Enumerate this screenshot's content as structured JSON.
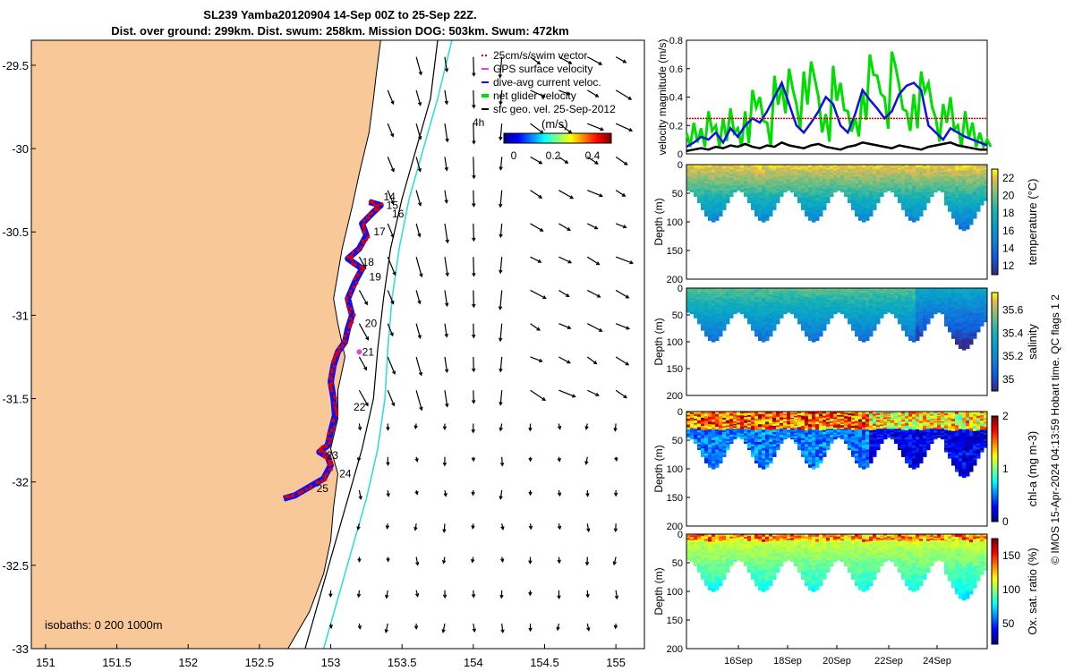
{
  "title_line1": "SL239 Yamba20120904 14-Sep 00Z to 25-Sep 22Z.",
  "title_line2": "Dist. over ground: 299km. Dist. swum: 258km. Mission DOG: 503km. Swum: 472km",
  "credit": "© IMOS 15-Apr-2024 04:13:59 Hobart time. QC flags 1  2",
  "chart_data": [
    {
      "type": "map",
      "name": "glider track map",
      "xticks": [
        "151",
        "151.5",
        "152",
        "152.5",
        "153",
        "153.5",
        "154",
        "154.5",
        "155"
      ],
      "xlim": [
        150.9,
        155.2
      ],
      "yticks": [
        "-29.5",
        "-30",
        "-30.5",
        "-31",
        "-31.5",
        "-32",
        "-32.5",
        "-33"
      ],
      "ylim": [
        -33,
        -29.35
      ],
      "legend": [
        "25cm/s/swim vector",
        "GPS surface velocity",
        "dive-avg current veloc.",
        "net glider velocity",
        "sfc geo. vel. 25-Sep-2012"
      ],
      "colorbar_label": "(m/s)",
      "colorbar_ticks": [
        "0",
        "0.2",
        "0.4"
      ],
      "annotation_4h": "4h",
      "isobaths_text": "isobaths: 0   200  1000m",
      "day_labels": [
        {
          "text": "14",
          "lon": 153.37,
          "lat": -30.29
        },
        {
          "text": "15",
          "lon": 153.39,
          "lat": -30.34
        },
        {
          "text": "16",
          "lon": 153.43,
          "lat": -30.39
        },
        {
          "text": "17",
          "lon": 153.3,
          "lat": -30.5
        },
        {
          "text": "18",
          "lon": 153.22,
          "lat": -30.68
        },
        {
          "text": "19",
          "lon": 153.27,
          "lat": -30.77
        },
        {
          "text": "20",
          "lon": 153.24,
          "lat": -31.05
        },
        {
          "text": "21",
          "lon": 153.22,
          "lat": -31.22
        },
        {
          "text": "22",
          "lon": 153.16,
          "lat": -31.55
        },
        {
          "text": "23",
          "lon": 152.97,
          "lat": -31.84
        },
        {
          "text": "24",
          "lon": 153.06,
          "lat": -31.95
        },
        {
          "text": "25",
          "lon": 152.9,
          "lat": -32.04
        }
      ],
      "coast": [
        [
          152.7,
          -33
        ],
        [
          152.85,
          -32.78
        ],
        [
          152.95,
          -32.55
        ],
        [
          153.0,
          -32.35
        ],
        [
          153.02,
          -32.15
        ],
        [
          153.05,
          -31.95
        ],
        [
          153.0,
          -31.8
        ],
        [
          153.05,
          -31.62
        ],
        [
          153.05,
          -31.45
        ],
        [
          153.1,
          -31.25
        ],
        [
          153.05,
          -31.05
        ],
        [
          153.02,
          -30.9
        ],
        [
          153.05,
          -30.75
        ],
        [
          153.08,
          -30.6
        ],
        [
          153.15,
          -30.35
        ],
        [
          153.2,
          -30.15
        ],
        [
          153.27,
          -29.9
        ],
        [
          153.3,
          -29.7
        ],
        [
          153.32,
          -29.55
        ],
        [
          153.35,
          -29.35
        ]
      ],
      "isobath_200": [
        [
          152.82,
          -33
        ],
        [
          152.92,
          -32.7
        ],
        [
          153.02,
          -32.4
        ],
        [
          153.12,
          -32.1
        ],
        [
          153.22,
          -31.8
        ],
        [
          153.3,
          -31.5
        ],
        [
          153.33,
          -31.2
        ],
        [
          153.37,
          -30.9
        ],
        [
          153.42,
          -30.6
        ],
        [
          153.5,
          -30.3
        ],
        [
          153.6,
          -30
        ],
        [
          153.7,
          -29.7
        ],
        [
          153.75,
          -29.35
        ]
      ],
      "isobath_1000": [
        [
          152.95,
          -33
        ],
        [
          153.05,
          -32.7
        ],
        [
          153.15,
          -32.4
        ],
        [
          153.25,
          -32.1
        ],
        [
          153.33,
          -31.8
        ],
        [
          153.38,
          -31.5
        ],
        [
          153.4,
          -31.2
        ],
        [
          153.43,
          -30.9
        ],
        [
          153.48,
          -30.6
        ],
        [
          153.55,
          -30.3
        ],
        [
          153.65,
          -30
        ],
        [
          153.75,
          -29.7
        ],
        [
          153.85,
          -29.35
        ]
      ],
      "track": [
        [
          153.27,
          -30.32
        ],
        [
          153.35,
          -30.34
        ],
        [
          153.3,
          -30.38
        ],
        [
          153.22,
          -30.45
        ],
        [
          153.25,
          -30.52
        ],
        [
          153.2,
          -30.6
        ],
        [
          153.12,
          -30.66
        ],
        [
          153.22,
          -30.72
        ],
        [
          153.17,
          -30.8
        ],
        [
          153.12,
          -30.9
        ],
        [
          153.15,
          -31.0
        ],
        [
          153.12,
          -31.08
        ],
        [
          153.1,
          -31.16
        ],
        [
          153.05,
          -31.22
        ],
        [
          153.02,
          -31.3
        ],
        [
          153.0,
          -31.4
        ],
        [
          153.02,
          -31.5
        ],
        [
          153.03,
          -31.6
        ],
        [
          153.0,
          -31.7
        ],
        [
          152.98,
          -31.78
        ],
        [
          152.92,
          -31.82
        ],
        [
          152.98,
          -31.85
        ],
        [
          153.0,
          -31.9
        ],
        [
          152.95,
          -31.98
        ],
        [
          152.85,
          -32.03
        ],
        [
          152.75,
          -32.08
        ],
        [
          152.67,
          -32.1
        ]
      ]
    },
    {
      "type": "line",
      "name": "velocity magnitude",
      "ylabel": "velocity magnitude (m/s)",
      "yticks": [
        "0",
        "0.2",
        "0.4",
        "0.6",
        "0.8"
      ],
      "ylim": [
        0,
        0.8
      ],
      "series": [
        {
          "name": "net glider velocity",
          "color": "#00dd00",
          "values": [
            0.15,
            0.22,
            0.18,
            0.3,
            0.2,
            0.25,
            0.32,
            0.18,
            0.3,
            0.45,
            0.4,
            0.22,
            0.55,
            0.48,
            0.6,
            0.35,
            0.58,
            0.65,
            0.4,
            0.28,
            0.62,
            0.5,
            0.3,
            0.25,
            0.45,
            0.7,
            0.55,
            0.4,
            0.72,
            0.48,
            0.3,
            0.42,
            0.58,
            0.5,
            0.25,
            0.35,
            0.4,
            0.2,
            0.3,
            0.22,
            0.15,
            0.1
          ]
        },
        {
          "name": "dive-avg current veloc.",
          "color": "#1010dd",
          "values": [
            0.05,
            0.08,
            0.12,
            0.1,
            0.15,
            0.08,
            0.18,
            0.12,
            0.2,
            0.25,
            0.22,
            0.3,
            0.4,
            0.5,
            0.35,
            0.2,
            0.15,
            0.22,
            0.3,
            0.4,
            0.35,
            0.2,
            0.15,
            0.28,
            0.45,
            0.38,
            0.32,
            0.25,
            0.3,
            0.42,
            0.48,
            0.5,
            0.45,
            0.2,
            0.15,
            0.1,
            0.18,
            0.15,
            0.12,
            0.1,
            0.08,
            0.06
          ]
        },
        {
          "name": "sfc geo. vel.",
          "color": "#000000",
          "values": [
            0.02,
            0.03,
            0.04,
            0.03,
            0.05,
            0.04,
            0.06,
            0.05,
            0.07,
            0.05,
            0.04,
            0.06,
            0.05,
            0.08,
            0.06,
            0.05,
            0.04,
            0.06,
            0.07,
            0.05,
            0.04,
            0.03,
            0.05,
            0.06,
            0.08,
            0.07,
            0.06,
            0.05,
            0.04,
            0.06,
            0.05,
            0.04,
            0.03,
            0.05,
            0.06,
            0.07,
            0.08,
            0.06,
            0.05,
            0.04,
            0.03,
            0.03
          ]
        },
        {
          "name": "25cm/s reference",
          "color": "#dd0000",
          "values": [
            0.25,
            0.25
          ]
        }
      ]
    },
    {
      "type": "heatmap",
      "name": "temperature section",
      "ylabel": "Depth (m)",
      "cblabel": "temperature (°C)",
      "cbticks": [
        "12",
        "14",
        "16",
        "18",
        "20",
        "22"
      ],
      "vmin": 11,
      "vmax": 23,
      "palette": "parula",
      "yticks": [
        "0",
        "50",
        "100",
        "150",
        "200"
      ]
    },
    {
      "type": "heatmap",
      "name": "salinity section",
      "ylabel": "Depth (m)",
      "cblabel": "salinity",
      "cbticks": [
        "35",
        "35.2",
        "35.4",
        "35.6"
      ],
      "vmin": 34.9,
      "vmax": 35.75,
      "palette": "parula",
      "yticks": [
        "0",
        "50",
        "100",
        "150",
        "200"
      ]
    },
    {
      "type": "heatmap",
      "name": "chlorophyll section",
      "ylabel": "Depth (m)",
      "cblabel": "chl-a (mg m-3)",
      "cbticks": [
        "0",
        "1",
        "2"
      ],
      "vmin": 0,
      "vmax": 2,
      "palette": "jet",
      "yticks": [
        "0",
        "50",
        "100",
        "150",
        "200"
      ]
    },
    {
      "type": "heatmap",
      "name": "oxygen section",
      "ylabel": "Depth (m)",
      "cblabel": "Ox. sat. ratio (%)",
      "cbticks": [
        "50",
        "100",
        "150"
      ],
      "vmin": 20,
      "vmax": 175,
      "palette": "jet",
      "yticks": [
        "0",
        "50",
        "100",
        "150",
        "200"
      ],
      "xticks": [
        "16Sep",
        "18Sep",
        "20Sep",
        "22Sep",
        "24Sep"
      ]
    }
  ]
}
